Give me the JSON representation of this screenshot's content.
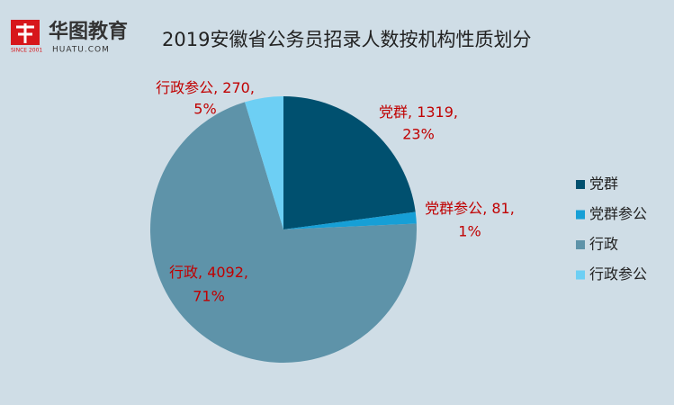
{
  "logo": {
    "name": "华图教育",
    "site": "HUATU.COM",
    "since": "SINCE 2001"
  },
  "chart_data": {
    "type": "pie",
    "title": "2019安徽省公务员招录人数按机构性质划分",
    "categories": [
      "党群",
      "党群参公",
      "行政",
      "行政参公"
    ],
    "values": [
      1319,
      81,
      4092,
      270
    ],
    "percent_labels": [
      "23%",
      "1%",
      "71%",
      "5%"
    ],
    "label_separator": ", ",
    "colors": [
      "#00506f",
      "#169fd6",
      "#5e93a9",
      "#6dcff4"
    ],
    "legend": "right"
  }
}
